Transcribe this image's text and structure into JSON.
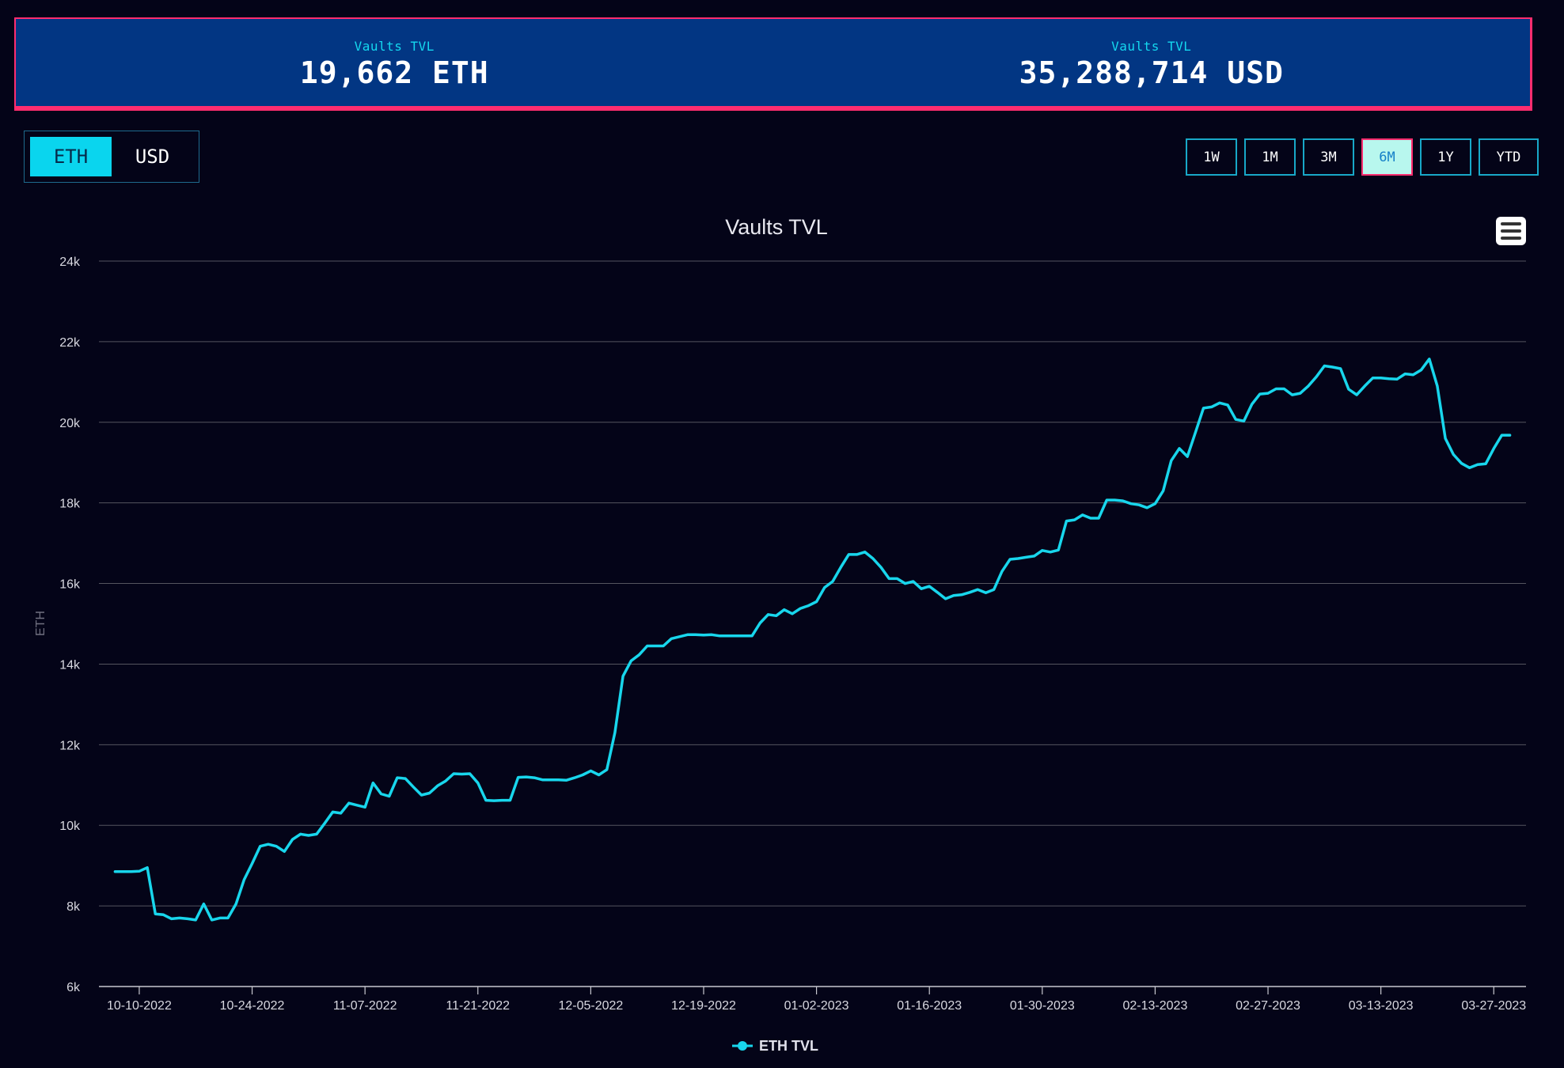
{
  "stats": [
    {
      "label": "Vaults TVL",
      "value": "19,662 ETH"
    },
    {
      "label": "Vaults TVL",
      "value": "35,288,714 USD"
    }
  ],
  "currency_toggle": {
    "options": [
      "ETH",
      "USD"
    ],
    "selected": "ETH"
  },
  "range_buttons": {
    "options": [
      "1W",
      "1M",
      "3M",
      "6M",
      "1Y",
      "YTD"
    ],
    "selected": "6M"
  },
  "colors": {
    "line": "#18d6ec",
    "banner": "#023683",
    "accent_border": "#ff2d6f",
    "toggle_active": "#0ad5ee"
  },
  "chart_data": {
    "type": "line",
    "title": "Vaults TVL",
    "ylabel": "ETH",
    "ylim": [
      6000,
      24000
    ],
    "yticks": [
      6000,
      8000,
      10000,
      12000,
      14000,
      16000,
      18000,
      20000,
      22000,
      24000
    ],
    "ytick_labels": [
      "6k",
      "8k",
      "10k",
      "12k",
      "14k",
      "16k",
      "18k",
      "20k",
      "22k",
      "24k"
    ],
    "xlim": [
      "2022-10-05",
      "2023-03-31"
    ],
    "xtick_labels": [
      "10-10-2022",
      "10-24-2022",
      "11-07-2022",
      "11-21-2022",
      "12-05-2022",
      "12-19-2022",
      "01-02-2023",
      "01-16-2023",
      "01-30-2023",
      "02-13-2023",
      "02-27-2023",
      "03-13-2023",
      "03-27-2023"
    ],
    "xtick_dates": [
      "2022-10-10",
      "2022-10-24",
      "2022-11-07",
      "2022-11-21",
      "2022-12-05",
      "2022-12-19",
      "2023-01-02",
      "2023-01-16",
      "2023-01-30",
      "2023-02-13",
      "2023-02-27",
      "2023-03-13",
      "2023-03-27"
    ],
    "grid": true,
    "legend": "bottom-center",
    "series": [
      {
        "name": "ETH TVL",
        "points": [
          [
            "2022-10-07",
            8850
          ],
          [
            "2022-10-08",
            8850
          ],
          [
            "2022-10-09",
            8850
          ],
          [
            "2022-10-10",
            8860
          ],
          [
            "2022-10-11",
            8950
          ],
          [
            "2022-10-12",
            7800
          ],
          [
            "2022-10-13",
            7780
          ],
          [
            "2022-10-14",
            7680
          ],
          [
            "2022-10-15",
            7700
          ],
          [
            "2022-10-16",
            7680
          ],
          [
            "2022-10-17",
            7650
          ],
          [
            "2022-10-18",
            8050
          ],
          [
            "2022-10-19",
            7650
          ],
          [
            "2022-10-20",
            7700
          ],
          [
            "2022-10-21",
            7700
          ],
          [
            "2022-10-22",
            8050
          ],
          [
            "2022-10-23",
            8650
          ],
          [
            "2022-10-24",
            9050
          ],
          [
            "2022-10-25",
            9480
          ],
          [
            "2022-10-26",
            9530
          ],
          [
            "2022-10-27",
            9480
          ],
          [
            "2022-10-28",
            9350
          ],
          [
            "2022-10-29",
            9650
          ],
          [
            "2022-10-30",
            9780
          ],
          [
            "2022-10-31",
            9750
          ],
          [
            "2022-11-01",
            9780
          ],
          [
            "2022-11-02",
            10050
          ],
          [
            "2022-11-03",
            10330
          ],
          [
            "2022-11-04",
            10300
          ],
          [
            "2022-11-05",
            10550
          ],
          [
            "2022-11-06",
            10500
          ],
          [
            "2022-11-07",
            10450
          ],
          [
            "2022-11-08",
            11050
          ],
          [
            "2022-11-09",
            10780
          ],
          [
            "2022-11-10",
            10720
          ],
          [
            "2022-11-11",
            11180
          ],
          [
            "2022-11-12",
            11160
          ],
          [
            "2022-11-13",
            10950
          ],
          [
            "2022-11-14",
            10750
          ],
          [
            "2022-11-15",
            10800
          ],
          [
            "2022-11-16",
            10980
          ],
          [
            "2022-11-17",
            11100
          ],
          [
            "2022-11-18",
            11280
          ],
          [
            "2022-11-19",
            11270
          ],
          [
            "2022-11-20",
            11280
          ],
          [
            "2022-11-21",
            11050
          ],
          [
            "2022-11-22",
            10620
          ],
          [
            "2022-11-23",
            10610
          ],
          [
            "2022-11-24",
            10620
          ],
          [
            "2022-11-25",
            10620
          ],
          [
            "2022-11-26",
            11190
          ],
          [
            "2022-11-27",
            11200
          ],
          [
            "2022-11-28",
            11180
          ],
          [
            "2022-11-29",
            11130
          ],
          [
            "2022-11-30",
            11130
          ],
          [
            "2022-12-01",
            11130
          ],
          [
            "2022-12-02",
            11120
          ],
          [
            "2022-12-03",
            11180
          ],
          [
            "2022-12-04",
            11250
          ],
          [
            "2022-12-05",
            11350
          ],
          [
            "2022-12-06",
            11250
          ],
          [
            "2022-12-07",
            11380
          ],
          [
            "2022-12-08",
            12300
          ],
          [
            "2022-12-09",
            13700
          ],
          [
            "2022-12-10",
            14080
          ],
          [
            "2022-12-11",
            14230
          ],
          [
            "2022-12-12",
            14450
          ],
          [
            "2022-12-13",
            14450
          ],
          [
            "2022-12-14",
            14450
          ],
          [
            "2022-12-15",
            14630
          ],
          [
            "2022-12-16",
            14680
          ],
          [
            "2022-12-17",
            14730
          ],
          [
            "2022-12-18",
            14730
          ],
          [
            "2022-12-19",
            14720
          ],
          [
            "2022-12-20",
            14730
          ],
          [
            "2022-12-21",
            14700
          ],
          [
            "2022-12-22",
            14700
          ],
          [
            "2022-12-23",
            14700
          ],
          [
            "2022-12-24",
            14700
          ],
          [
            "2022-12-25",
            14700
          ],
          [
            "2022-12-26",
            15020
          ],
          [
            "2022-12-27",
            15230
          ],
          [
            "2022-12-28",
            15200
          ],
          [
            "2022-12-29",
            15350
          ],
          [
            "2022-12-30",
            15250
          ],
          [
            "2022-12-31",
            15380
          ],
          [
            "2023-01-01",
            15450
          ],
          [
            "2023-01-02",
            15550
          ],
          [
            "2023-01-03",
            15900
          ],
          [
            "2023-01-04",
            16050
          ],
          [
            "2023-01-05",
            16400
          ],
          [
            "2023-01-06",
            16720
          ],
          [
            "2023-01-07",
            16720
          ],
          [
            "2023-01-08",
            16780
          ],
          [
            "2023-01-09",
            16620
          ],
          [
            "2023-01-10",
            16400
          ],
          [
            "2023-01-11",
            16120
          ],
          [
            "2023-01-12",
            16120
          ],
          [
            "2023-01-13",
            16000
          ],
          [
            "2023-01-14",
            16050
          ],
          [
            "2023-01-15",
            15870
          ],
          [
            "2023-01-16",
            15930
          ],
          [
            "2023-01-17",
            15780
          ],
          [
            "2023-01-18",
            15620
          ],
          [
            "2023-01-19",
            15700
          ],
          [
            "2023-01-20",
            15720
          ],
          [
            "2023-01-21",
            15780
          ],
          [
            "2023-01-22",
            15850
          ],
          [
            "2023-01-23",
            15770
          ],
          [
            "2023-01-24",
            15850
          ],
          [
            "2023-01-25",
            16300
          ],
          [
            "2023-01-26",
            16600
          ],
          [
            "2023-01-27",
            16620
          ],
          [
            "2023-01-28",
            16650
          ],
          [
            "2023-01-29",
            16680
          ],
          [
            "2023-01-30",
            16820
          ],
          [
            "2023-01-31",
            16780
          ],
          [
            "2023-02-01",
            16830
          ],
          [
            "2023-02-02",
            17550
          ],
          [
            "2023-02-03",
            17580
          ],
          [
            "2023-02-04",
            17700
          ],
          [
            "2023-02-05",
            17620
          ],
          [
            "2023-02-06",
            17620
          ],
          [
            "2023-02-07",
            18070
          ],
          [
            "2023-02-08",
            18070
          ],
          [
            "2023-02-09",
            18050
          ],
          [
            "2023-02-10",
            17980
          ],
          [
            "2023-02-11",
            17950
          ],
          [
            "2023-02-12",
            17880
          ],
          [
            "2023-02-13",
            17980
          ],
          [
            "2023-02-14",
            18300
          ],
          [
            "2023-02-15",
            19050
          ],
          [
            "2023-02-16",
            19350
          ],
          [
            "2023-02-17",
            19150
          ],
          [
            "2023-02-18",
            19750
          ],
          [
            "2023-02-19",
            20350
          ],
          [
            "2023-02-20",
            20380
          ],
          [
            "2023-02-21",
            20480
          ],
          [
            "2023-02-22",
            20430
          ],
          [
            "2023-02-23",
            20070
          ],
          [
            "2023-02-24",
            20030
          ],
          [
            "2023-02-25",
            20450
          ],
          [
            "2023-02-26",
            20700
          ],
          [
            "2023-02-27",
            20720
          ],
          [
            "2023-02-28",
            20830
          ],
          [
            "2023-03-01",
            20830
          ],
          [
            "2023-03-02",
            20680
          ],
          [
            "2023-03-03",
            20720
          ],
          [
            "2023-03-04",
            20900
          ],
          [
            "2023-03-05",
            21130
          ],
          [
            "2023-03-06",
            21400
          ],
          [
            "2023-03-07",
            21370
          ],
          [
            "2023-03-08",
            21330
          ],
          [
            "2023-03-09",
            20820
          ],
          [
            "2023-03-10",
            20680
          ],
          [
            "2023-03-11",
            20900
          ],
          [
            "2023-03-12",
            21100
          ],
          [
            "2023-03-13",
            21100
          ],
          [
            "2023-03-14",
            21080
          ],
          [
            "2023-03-15",
            21070
          ],
          [
            "2023-03-16",
            21200
          ],
          [
            "2023-03-17",
            21180
          ],
          [
            "2023-03-18",
            21300
          ],
          [
            "2023-03-19",
            21570
          ],
          [
            "2023-03-20",
            20900
          ],
          [
            "2023-03-21",
            19600
          ],
          [
            "2023-03-22",
            19200
          ],
          [
            "2023-03-23",
            18980
          ],
          [
            "2023-03-24",
            18870
          ],
          [
            "2023-03-25",
            18950
          ],
          [
            "2023-03-26",
            18970
          ],
          [
            "2023-03-27",
            19350
          ],
          [
            "2023-03-28",
            19680
          ],
          [
            "2023-03-29",
            19680
          ]
        ]
      }
    ]
  }
}
